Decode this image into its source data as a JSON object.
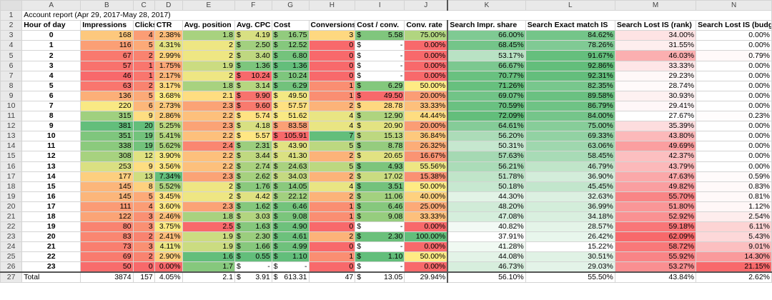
{
  "columns": [
    "A",
    "B",
    "C",
    "D",
    "E",
    "F",
    "G",
    "H",
    "I",
    "J",
    "K",
    "L",
    "M",
    "N"
  ],
  "title": "Account report (Apr 29, 2017-May 28, 2017)",
  "headers": [
    "Hour of day",
    "Impressions",
    "Clicks",
    "CTR",
    "Avg. position",
    "Avg. CPC",
    "Cost",
    "Conversions",
    "Cost / conv.",
    "Conv. rate",
    "Search Impr. share",
    "Search Exact match IS",
    "Search Lost IS (rank)",
    "Search Lost IS (budget)"
  ],
  "currency_symbol": "$",
  "rows": [
    {
      "hour": "0",
      "impr": "168",
      "clicks": "4",
      "ctr": "2.38%",
      "pos": "1.8",
      "cpc": "4.19",
      "cost": "16.75",
      "conv": "3",
      "cpconv": "5.58",
      "cr": "75.00%",
      "is": "66.00%",
      "exact": "84.62%",
      "rank": "34.00%",
      "budget": "0.00%"
    },
    {
      "hour": "1",
      "impr": "116",
      "clicks": "5",
      "ctr": "4.31%",
      "pos": "2",
      "cpc": "2.50",
      "cost": "12.52",
      "conv": "0",
      "cpconv": "-",
      "cr": "0.00%",
      "is": "68.45%",
      "exact": "78.26%",
      "rank": "31.55%",
      "budget": "0.00%"
    },
    {
      "hour": "2",
      "impr": "67",
      "clicks": "2",
      "ctr": "2.99%",
      "pos": "2",
      "cpc": "3.40",
      "cost": "6.80",
      "conv": "0",
      "cpconv": "-",
      "cr": "0.00%",
      "is": "53.17%",
      "exact": "91.67%",
      "rank": "46.03%",
      "budget": "0.79%"
    },
    {
      "hour": "3",
      "impr": "57",
      "clicks": "1",
      "ctr": "1.75%",
      "pos": "1.9",
      "cpc": "1.36",
      "cost": "1.36",
      "conv": "0",
      "cpconv": "-",
      "cr": "0.00%",
      "is": "66.67%",
      "exact": "92.86%",
      "rank": "33.33%",
      "budget": "0.00%"
    },
    {
      "hour": "4",
      "impr": "46",
      "clicks": "1",
      "ctr": "2.17%",
      "pos": "2",
      "cpc": "10.24",
      "cost": "10.24",
      "conv": "0",
      "cpconv": "-",
      "cr": "0.00%",
      "is": "70.77%",
      "exact": "92.31%",
      "rank": "29.23%",
      "budget": "0.00%"
    },
    {
      "hour": "5",
      "impr": "63",
      "clicks": "2",
      "ctr": "3.17%",
      "pos": "1.8",
      "cpc": "3.14",
      "cost": "6.29",
      "conv": "1",
      "cpconv": "6.29",
      "cr": "50.00%",
      "is": "71.26%",
      "exact": "82.35%",
      "rank": "28.74%",
      "budget": "0.00%"
    },
    {
      "hour": "6",
      "impr": "136",
      "clicks": "5",
      "ctr": "3.68%",
      "pos": "2.1",
      "cpc": "9.90",
      "cost": "49.50",
      "conv": "1",
      "cpconv": "49.50",
      "cr": "20.00%",
      "is": "69.07%",
      "exact": "89.58%",
      "rank": "30.93%",
      "budget": "0.00%"
    },
    {
      "hour": "7",
      "impr": "220",
      "clicks": "6",
      "ctr": "2.73%",
      "pos": "2.3",
      "cpc": "9.60",
      "cost": "57.57",
      "conv": "2",
      "cpconv": "28.78",
      "cr": "33.33%",
      "is": "70.59%",
      "exact": "86.79%",
      "rank": "29.41%",
      "budget": "0.00%"
    },
    {
      "hour": "8",
      "impr": "315",
      "clicks": "9",
      "ctr": "2.86%",
      "pos": "2.2",
      "cpc": "5.74",
      "cost": "51.62",
      "conv": "4",
      "cpconv": "12.90",
      "cr": "44.44%",
      "is": "72.09%",
      "exact": "84.00%",
      "rank": "27.67%",
      "budget": "0.23%"
    },
    {
      "hour": "9",
      "impr": "381",
      "clicks": "20",
      "ctr": "5.25%",
      "pos": "2.3",
      "cpc": "4.18",
      "cost": "83.58",
      "conv": "4",
      "cpconv": "20.90",
      "cr": "20.00%",
      "is": "64.61%",
      "exact": "75.00%",
      "rank": "35.39%",
      "budget": "0.00%"
    },
    {
      "hour": "10",
      "impr": "351",
      "clicks": "19",
      "ctr": "5.41%",
      "pos": "2.2",
      "cpc": "5.57",
      "cost": "105.91",
      "conv": "7",
      "cpconv": "15.13",
      "cr": "36.84%",
      "is": "56.20%",
      "exact": "69.33%",
      "rank": "43.80%",
      "budget": "0.00%"
    },
    {
      "hour": "11",
      "impr": "338",
      "clicks": "19",
      "ctr": "5.62%",
      "pos": "2.4",
      "cpc": "2.31",
      "cost": "43.90",
      "conv": "5",
      "cpconv": "8.78",
      "cr": "26.32%",
      "is": "50.31%",
      "exact": "63.06%",
      "rank": "49.69%",
      "budget": "0.00%"
    },
    {
      "hour": "12",
      "impr": "308",
      "clicks": "12",
      "ctr": "3.90%",
      "pos": "2.2",
      "cpc": "3.44",
      "cost": "41.30",
      "conv": "2",
      "cpconv": "20.65",
      "cr": "16.67%",
      "is": "57.63%",
      "exact": "58.45%",
      "rank": "42.37%",
      "budget": "0.00%"
    },
    {
      "hour": "13",
      "impr": "253",
      "clicks": "9",
      "ctr": "3.56%",
      "pos": "2.2",
      "cpc": "2.74",
      "cost": "24.63",
      "conv": "5",
      "cpconv": "4.93",
      "cr": "55.56%",
      "is": "56.21%",
      "exact": "46.79%",
      "rank": "43.79%",
      "budget": "0.00%"
    },
    {
      "hour": "14",
      "impr": "177",
      "clicks": "13",
      "ctr": "7.34%",
      "pos": "2.3",
      "cpc": "2.62",
      "cost": "34.03",
      "conv": "2",
      "cpconv": "17.02",
      "cr": "15.38%",
      "is": "51.78%",
      "exact": "36.90%",
      "rank": "47.63%",
      "budget": "0.59%"
    },
    {
      "hour": "15",
      "impr": "145",
      "clicks": "8",
      "ctr": "5.52%",
      "pos": "2",
      "cpc": "1.76",
      "cost": "14.05",
      "conv": "4",
      "cpconv": "3.51",
      "cr": "50.00%",
      "is": "50.18%",
      "exact": "45.45%",
      "rank": "49.82%",
      "budget": "0.83%"
    },
    {
      "hour": "16",
      "impr": "145",
      "clicks": "5",
      "ctr": "3.45%",
      "pos": "2",
      "cpc": "4.42",
      "cost": "22.12",
      "conv": "2",
      "cpconv": "11.06",
      "cr": "40.00%",
      "is": "44.30%",
      "exact": "32.63%",
      "rank": "55.70%",
      "budget": "0.81%"
    },
    {
      "hour": "17",
      "impr": "111",
      "clicks": "4",
      "ctr": "3.60%",
      "pos": "2.3",
      "cpc": "1.62",
      "cost": "6.46",
      "conv": "1",
      "cpconv": "6.46",
      "cr": "25.00%",
      "is": "48.20%",
      "exact": "36.99%",
      "rank": "51.80%",
      "budget": "1.12%"
    },
    {
      "hour": "18",
      "impr": "122",
      "clicks": "3",
      "ctr": "2.46%",
      "pos": "1.8",
      "cpc": "3.03",
      "cost": "9.08",
      "conv": "1",
      "cpconv": "9.08",
      "cr": "33.33%",
      "is": "47.08%",
      "exact": "34.18%",
      "rank": "52.92%",
      "budget": "2.54%"
    },
    {
      "hour": "19",
      "impr": "80",
      "clicks": "3",
      "ctr": "3.75%",
      "pos": "2.5",
      "cpc": "1.63",
      "cost": "4.90",
      "conv": "0",
      "cpconv": "-",
      "cr": "0.00%",
      "is": "40.82%",
      "exact": "28.57%",
      "rank": "59.18%",
      "budget": "6.11%"
    },
    {
      "hour": "20",
      "impr": "83",
      "clicks": "2",
      "ctr": "2.41%",
      "pos": "1.9",
      "cpc": "2.30",
      "cost": "4.61",
      "conv": "2",
      "cpconv": "2.30",
      "cr": "100.00%",
      "is": "37.91%",
      "exact": "26.42%",
      "rank": "62.09%",
      "budget": "5.43%"
    },
    {
      "hour": "21",
      "impr": "73",
      "clicks": "3",
      "ctr": "4.11%",
      "pos": "1.9",
      "cpc": "1.66",
      "cost": "4.99",
      "conv": "0",
      "cpconv": "-",
      "cr": "0.00%",
      "is": "41.28%",
      "exact": "15.22%",
      "rank": "58.72%",
      "budget": "9.01%"
    },
    {
      "hour": "22",
      "impr": "69",
      "clicks": "2",
      "ctr": "2.90%",
      "pos": "1.6",
      "cpc": "0.55",
      "cost": "1.10",
      "conv": "1",
      "cpconv": "1.10",
      "cr": "50.00%",
      "is": "44.08%",
      "exact": "30.51%",
      "rank": "55.92%",
      "budget": "14.30%"
    },
    {
      "hour": "23",
      "impr": "50",
      "clicks": "0",
      "ctr": "0.00%",
      "pos": "1.7",
      "cpc": "-",
      "cost": "-",
      "conv": "0",
      "cpconv": "-",
      "cr": "0.00%",
      "is": "46.73%",
      "exact": "29.03%",
      "rank": "53.27%",
      "budget": "21.15%"
    }
  ],
  "total": {
    "label": "Total",
    "impr": "3874",
    "clicks": "157",
    "ctr": "4.05%",
    "pos": "2.1",
    "cpc": "3.91",
    "cost": "613.31",
    "conv": "47",
    "cpconv": "13.05",
    "cr": "29.94%",
    "is": "56.10%",
    "exact": "55.50%",
    "rank": "43.84%",
    "budget": "2.62%"
  },
  "colors": {
    "red": "#f8696b",
    "yellow": "#ffeb84",
    "green": "#63be7b",
    "ramp_green_base": "#ffffff",
    "ramp_green_top": "#63be7b",
    "ramp_red_base": "#ffffff",
    "ramp_red_top": "#f8696b"
  }
}
